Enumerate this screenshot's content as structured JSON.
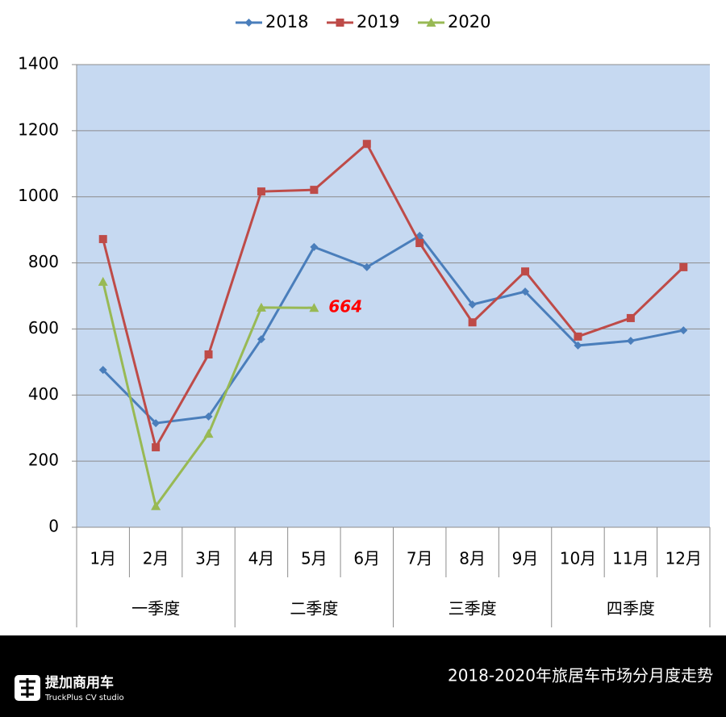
{
  "chart_data": {
    "type": "line",
    "categories": [
      "1月",
      "2月",
      "3月",
      "4月",
      "5月",
      "6月",
      "7月",
      "8月",
      "9月",
      "10月",
      "11月",
      "12月"
    ],
    "groups": [
      "一季度",
      "二季度",
      "三季度",
      "四季度"
    ],
    "series": [
      {
        "name": "2018",
        "color": "#4a7ebb",
        "marker": "diamond",
        "values": [
          476,
          315,
          335,
          569,
          848,
          787,
          882,
          674,
          713,
          550,
          564,
          596
        ]
      },
      {
        "name": "2019",
        "color": "#be4b48",
        "marker": "square",
        "values": [
          872,
          242,
          523,
          1016,
          1021,
          1160,
          860,
          620,
          774,
          577,
          633,
          787
        ]
      },
      {
        "name": "2020",
        "color": "#98b954",
        "marker": "triangle",
        "values": [
          743,
          64,
          283,
          665,
          664,
          null,
          null,
          null,
          null,
          null,
          null,
          null
        ],
        "value_labels": [
          null,
          null,
          null,
          null,
          "664",
          null,
          null,
          null,
          null,
          null,
          null,
          null
        ]
      }
    ],
    "ylim": [
      0,
      1400
    ],
    "yticks": [
      0,
      200,
      400,
      600,
      800,
      1000,
      1200,
      1400
    ],
    "grid": true,
    "legend": "top"
  },
  "footer": {
    "brand": "提加商用车",
    "brand_sub": "TruckPlus CV studio",
    "caption": "2018-2020年旅居车市场分月度走势"
  }
}
